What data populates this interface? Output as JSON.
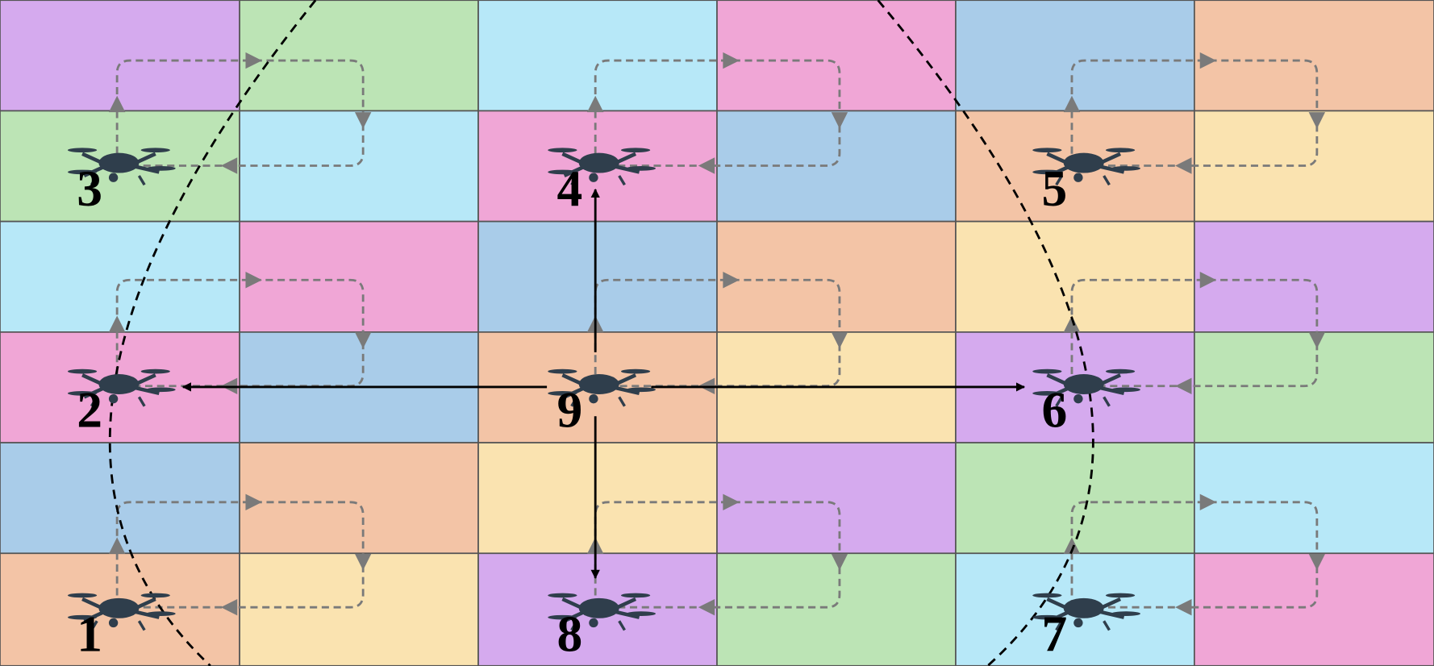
{
  "drones": [
    {
      "label": "1"
    },
    {
      "label": "2"
    },
    {
      "label": "3"
    },
    {
      "label": "4"
    },
    {
      "label": "5"
    },
    {
      "label": "6"
    },
    {
      "label": "7"
    },
    {
      "label": "8"
    },
    {
      "label": "9"
    }
  ]
}
